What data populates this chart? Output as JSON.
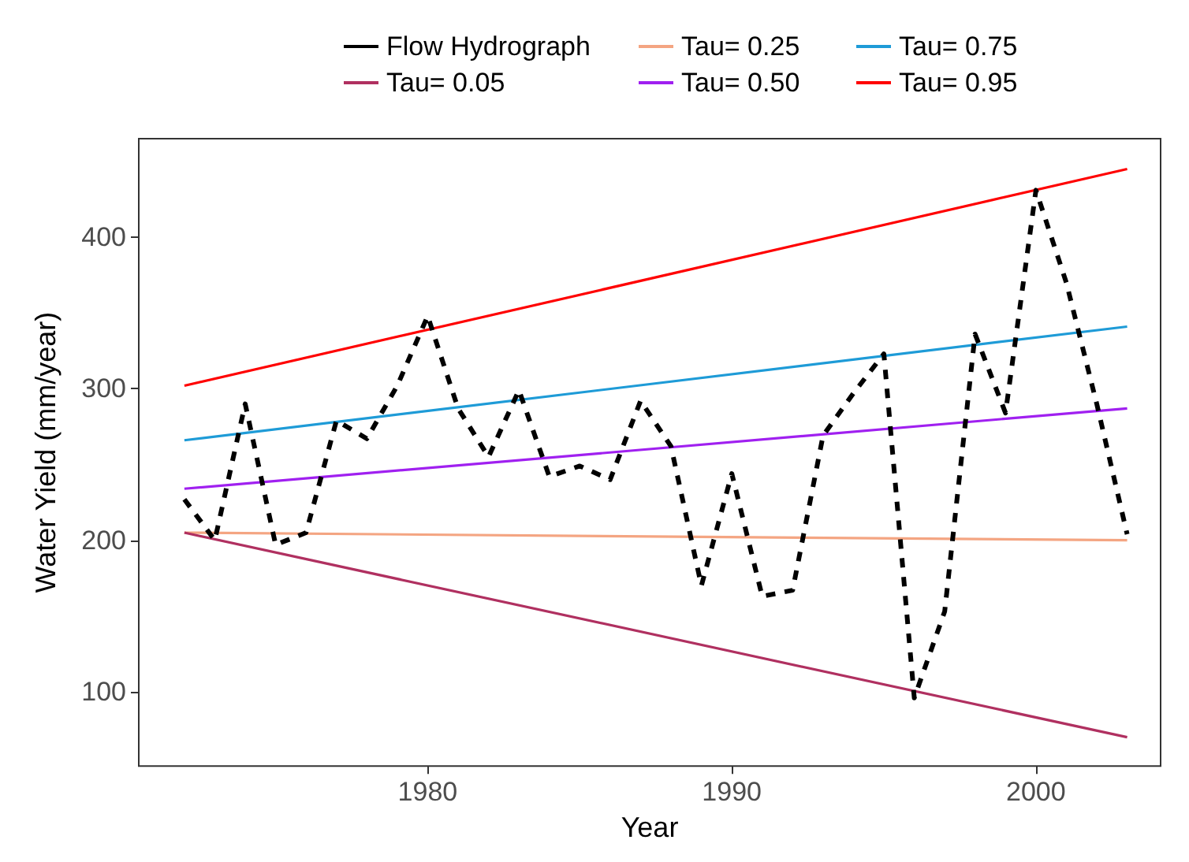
{
  "chart_data": {
    "type": "line",
    "xlabel": "Year",
    "ylabel": "Water Yield (mm/year)",
    "xlim": [
      1970.5,
      2004.1
    ],
    "ylim": [
      51,
      465
    ],
    "xticks": [
      1980,
      1990,
      2000
    ],
    "yticks": [
      100,
      200,
      300,
      400
    ],
    "grid": false,
    "legend": "top",
    "marker": "none",
    "series": [
      {
        "name": "Flow Hydrograph",
        "color": "#000000",
        "line_style": "dashed",
        "x": [
          1972,
          1973,
          1974,
          1975,
          1976,
          1977,
          1978,
          1979,
          1980,
          1981,
          1982,
          1983,
          1984,
          1985,
          1986,
          1987,
          1988,
          1989,
          1990,
          1991,
          1992,
          1993,
          1994,
          1995,
          1996,
          1997,
          1998,
          1999,
          2000,
          2001,
          2002,
          2003
        ],
        "values": [
          227,
          200,
          290,
          197,
          205,
          279,
          267,
          302,
          348,
          287,
          255,
          299,
          242,
          249,
          240,
          292,
          262,
          170,
          244,
          163,
          167,
          269,
          297,
          323,
          96,
          153,
          336,
          284,
          431,
          370,
          290,
          204
        ]
      },
      {
        "name": "Tau= 0.05",
        "color": "#b03060",
        "line_style": "solid",
        "x": [
          1972,
          2003
        ],
        "values": [
          205,
          70
        ]
      },
      {
        "name": "Tau= 0.25",
        "color": "#f4a582",
        "line_style": "solid",
        "x": [
          1972,
          2003
        ],
        "values": [
          205,
          200
        ]
      },
      {
        "name": "Tau= 0.50",
        "color": "#a020f0",
        "line_style": "solid",
        "x": [
          1972,
          2003
        ],
        "values": [
          234,
          287
        ]
      },
      {
        "name": "Tau= 0.75",
        "color": "#1e9bd7",
        "line_style": "solid",
        "x": [
          1972,
          2003
        ],
        "values": [
          266,
          341
        ]
      },
      {
        "name": "Tau= 0.95",
        "color": "#ff0000",
        "line_style": "solid",
        "x": [
          1972,
          2003
        ],
        "values": [
          302,
          445
        ]
      }
    ]
  }
}
